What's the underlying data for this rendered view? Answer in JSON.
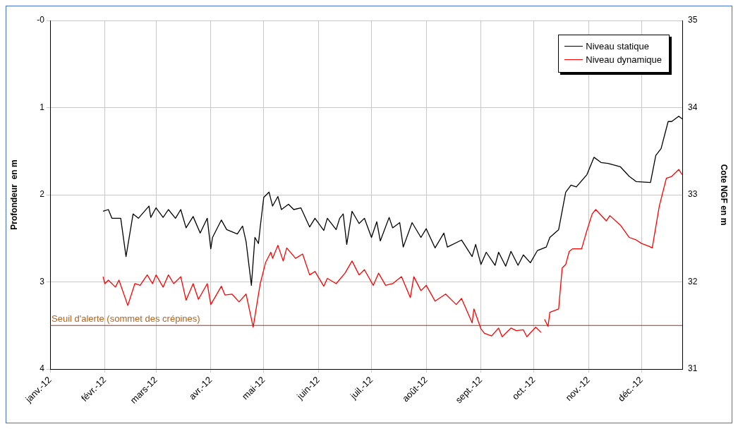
{
  "chart_data": {
    "type": "line",
    "ylabel": "Profondeur  en m",
    "y2label": "Cote NGF en m",
    "xlim": [
      "2012-01-01",
      "2012-12-24"
    ],
    "xticks": [
      {
        "value": "2012-01-01",
        "label": "janv.-12"
      },
      {
        "value": "2012-02-01",
        "label": "févr.-12"
      },
      {
        "value": "2012-03-01",
        "label": "mars-12"
      },
      {
        "value": "2012-04-01",
        "label": "avr.-12"
      },
      {
        "value": "2012-05-01",
        "label": "mai-12"
      },
      {
        "value": "2012-06-01",
        "label": "juin-12"
      },
      {
        "value": "2012-07-01",
        "label": "juil.-12"
      },
      {
        "value": "2012-08-01",
        "label": "août-12"
      },
      {
        "value": "2012-09-01",
        "label": "sept.-12"
      },
      {
        "value": "2012-10-01",
        "label": "oct.-12"
      },
      {
        "value": "2012-11-01",
        "label": "nov.-12"
      },
      {
        "value": "2012-12-01",
        "label": "déc.-12"
      }
    ],
    "ylim": [
      4,
      0
    ],
    "yticks": [
      {
        "value": 0,
        "label": "-0"
      },
      1,
      2,
      3,
      4
    ],
    "y2lim": [
      31,
      35
    ],
    "y2ticks": [
      31,
      32,
      33,
      34,
      35
    ],
    "grid": true,
    "legend": "top right",
    "marker": "none",
    "line_style": "solid",
    "ref_lines": [
      {
        "axis": "y",
        "value": 3.5,
        "label": "Seuil d'alerte (sommet des crépines)",
        "color": "#a0302a"
      }
    ],
    "series": [
      {
        "name": "Niveau statique",
        "color": "#000000",
        "x": [
          "2012-01-31",
          "2012-02-03",
          "2012-02-05",
          "2012-02-10",
          "2012-02-13",
          "2012-02-17",
          "2012-02-20",
          "2012-02-26",
          "2012-02-27",
          "2012-03-01",
          "2012-03-05",
          "2012-03-08",
          "2012-03-12",
          "2012-03-15",
          "2012-03-18",
          "2012-03-22",
          "2012-03-26",
          "2012-03-30",
          "2012-04-01",
          "2012-04-02",
          "2012-04-07",
          "2012-04-10",
          "2012-04-16",
          "2012-04-19",
          "2012-04-21",
          "2012-04-24",
          "2012-04-26",
          "2012-04-28",
          "2012-04-29",
          "2012-05-01",
          "2012-05-04",
          "2012-05-06",
          "2012-05-09",
          "2012-05-11",
          "2012-05-15",
          "2012-05-18",
          "2012-05-22",
          "2012-05-27",
          "2012-05-30",
          "2012-06-04",
          "2012-06-06",
          "2012-06-11",
          "2012-06-13",
          "2012-06-15",
          "2012-06-17",
          "2012-06-20",
          "2012-06-24",
          "2012-06-27",
          "2012-07-01",
          "2012-07-04",
          "2012-07-06",
          "2012-07-11",
          "2012-07-13",
          "2012-07-17",
          "2012-07-19",
          "2012-07-24",
          "2012-07-29",
          "2012-08-01",
          "2012-08-06",
          "2012-08-11",
          "2012-08-13",
          "2012-08-21",
          "2012-08-27",
          "2012-08-29",
          "2012-09-01",
          "2012-09-04",
          "2012-09-09",
          "2012-09-11",
          "2012-09-15",
          "2012-09-18",
          "2012-09-22",
          "2012-09-25",
          "2012-09-29",
          "2012-10-03",
          "2012-10-08",
          "2012-10-10",
          "2012-10-15",
          "2012-10-19",
          "2012-10-22",
          "2012-10-25",
          "2012-10-31",
          "2012-11-04",
          "2012-11-08",
          "2012-11-12",
          "2012-11-19",
          "2012-11-24",
          "2012-11-28",
          "2012-12-06",
          "2012-12-09",
          "2012-12-12",
          "2012-12-16",
          "2012-12-18",
          "2012-12-22",
          "2012-12-24"
        ],
        "values": [
          2.19,
          2.17,
          2.27,
          2.27,
          2.71,
          2.22,
          2.27,
          2.13,
          2.26,
          2.15,
          2.26,
          2.17,
          2.27,
          2.17,
          2.38,
          2.25,
          2.44,
          2.27,
          2.62,
          2.49,
          2.29,
          2.4,
          2.45,
          2.36,
          2.54,
          3.04,
          2.49,
          2.56,
          2.37,
          2.03,
          1.97,
          2.13,
          2.02,
          2.17,
          2.11,
          2.17,
          2.15,
          2.37,
          2.27,
          2.41,
          2.27,
          2.4,
          2.27,
          2.22,
          2.57,
          2.19,
          2.33,
          2.27,
          2.49,
          2.31,
          2.53,
          2.26,
          2.38,
          2.32,
          2.6,
          2.32,
          2.49,
          2.39,
          2.61,
          2.44,
          2.6,
          2.52,
          2.71,
          2.57,
          2.8,
          2.66,
          2.81,
          2.66,
          2.82,
          2.65,
          2.81,
          2.69,
          2.78,
          2.64,
          2.6,
          2.49,
          2.4,
          1.97,
          1.89,
          1.91,
          1.77,
          1.57,
          1.63,
          1.64,
          1.68,
          1.79,
          1.85,
          1.86,
          1.55,
          1.47,
          1.16,
          1.16,
          1.1,
          1.13
        ]
      },
      {
        "name": "Niveau dynamique",
        "color": "#ff0000",
        "x": [
          "2012-01-31",
          "2012-02-01",
          "2012-02-03",
          "2012-02-07",
          "2012-02-09",
          "2012-02-14",
          "2012-02-18",
          "2012-02-21",
          "2012-02-25",
          "2012-02-28",
          "2012-03-01",
          "2012-03-05",
          "2012-03-08",
          "2012-03-11",
          "2012-03-15",
          "2012-03-18",
          "2012-03-22",
          "2012-03-25",
          "2012-03-30",
          "2012-04-01",
          "2012-04-07",
          "2012-04-09",
          "2012-04-13",
          "2012-04-17",
          "2012-04-21",
          "2012-04-25",
          "2012-04-29",
          "2012-05-02",
          "2012-05-05",
          "2012-05-06",
          "2012-05-09",
          "2012-05-12",
          "2012-05-14",
          "2012-05-19",
          "2012-05-23",
          "2012-05-27",
          "2012-05-30",
          "2012-06-04",
          "2012-06-06",
          "2012-06-11",
          "2012-06-16",
          "2012-06-20",
          "2012-06-24",
          "2012-06-27",
          "2012-07-02",
          "2012-07-05",
          "2012-07-09",
          "2012-07-13",
          "2012-07-18",
          "2012-07-23",
          "2012-07-25",
          "2012-07-29",
          "2012-08-01",
          "2012-08-06",
          "2012-08-12",
          "2012-08-18",
          "2012-08-21",
          "2012-08-27",
          "2012-08-28",
          "2012-09-01",
          "2012-09-03",
          "2012-09-07",
          "2012-09-11",
          "2012-09-13",
          "2012-09-18",
          "2012-09-21",
          "2012-09-25",
          "2012-09-27",
          "2012-10-02",
          "2012-10-05",
          "2012-10-06",
          "2012-10-07",
          "2012-10-09",
          "2012-10-10",
          "2012-10-15",
          "2012-10-17",
          "2012-10-19",
          "2012-10-21",
          "2012-10-23",
          "2012-10-28",
          "2012-10-31",
          "2012-11-03",
          "2012-11-05",
          "2012-11-11",
          "2012-11-13",
          "2012-11-19",
          "2012-11-24",
          "2012-11-28",
          "2012-12-01",
          "2012-12-05",
          "2012-12-07",
          "2012-12-11",
          "2012-12-15",
          "2012-12-18",
          "2012-12-22",
          "2012-12-24"
        ],
        "values": [
          2.94,
          3.02,
          2.98,
          3.06,
          2.98,
          3.27,
          3.02,
          3.04,
          2.92,
          3.02,
          2.92,
          3.06,
          2.92,
          3.02,
          2.94,
          3.21,
          3.02,
          3.2,
          3.02,
          3.26,
          3.05,
          3.15,
          3.14,
          3.23,
          3.14,
          3.52,
          3.02,
          2.78,
          2.66,
          2.73,
          2.58,
          2.76,
          2.61,
          2.73,
          2.68,
          2.92,
          2.88,
          3.05,
          2.96,
          3.02,
          2.9,
          2.76,
          2.92,
          2.86,
          3.04,
          2.9,
          3.04,
          3.02,
          2.94,
          3.18,
          2.94,
          3.1,
          3.04,
          3.22,
          3.14,
          3.26,
          3.19,
          3.47,
          3.31,
          3.54,
          3.59,
          3.62,
          3.53,
          3.63,
          3.53,
          3.56,
          3.55,
          3.63,
          3.52,
          3.58,
          null,
          3.43,
          3.51,
          3.35,
          3.31,
          2.84,
          2.8,
          2.65,
          2.62,
          2.62,
          2.41,
          2.22,
          2.17,
          2.3,
          2.24,
          2.35,
          2.49,
          2.52,
          2.56,
          2.59,
          2.61,
          2.13,
          1.81,
          1.79,
          1.71,
          1.77
        ]
      }
    ]
  }
}
